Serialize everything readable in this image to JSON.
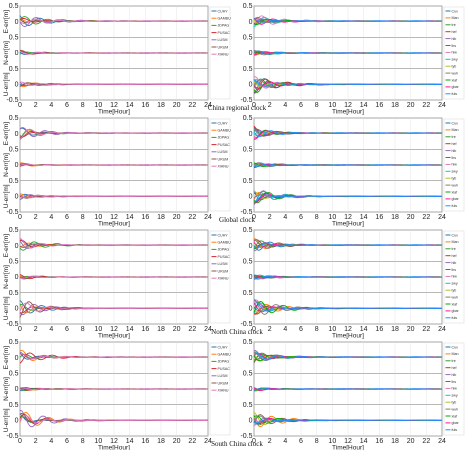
{
  "colors": [
    "#1f77b4",
    "#ff7f0e",
    "#2ca02c",
    "#d62728",
    "#9467bd",
    "#8c564b",
    "#e377c2",
    "#17becf",
    "#bcbd22",
    "#7f7f7f",
    "#00aa00",
    "#ff1493",
    "#1e90ff"
  ],
  "chart_data": [
    {
      "type": "line",
      "row_title": "China regional clock",
      "panels": [
        {
          "side": "left",
          "xlabel": "Time[Hour]",
          "ylabels": [
            "E-err[m]",
            "N-err[m]",
            "U-err[m]"
          ],
          "xlim": [
            0,
            24
          ],
          "ylim": [
            -0.5,
            0.5
          ],
          "xticks": [
            "0",
            "2",
            "4",
            "6",
            "8",
            "10",
            "12",
            "14",
            "16",
            "18",
            "20",
            "22",
            "24"
          ],
          "legend": [
            "CUHY",
            "GAMBU",
            "JDPAG",
            "PUSAC",
            "LUSM",
            "URUM",
            "XIANU"
          ],
          "u_amp": 0.12
        },
        {
          "side": "right",
          "xlabel": "Time[Hour]",
          "ylabels": [
            "",
            "",
            ""
          ],
          "xlim": [
            0,
            24
          ],
          "ylim": [
            -0.5,
            0.5
          ],
          "xticks": [
            "0",
            "2",
            "4",
            "6",
            "8",
            "10",
            "12",
            "14",
            "16",
            "18",
            "20",
            "22",
            "24"
          ],
          "legend": [
            "Cuv",
            "Man",
            "tre",
            "hef",
            "hlb",
            "lhs",
            "hlw",
            "swy",
            "tyb",
            "wuh",
            "xlaf",
            "gbar",
            "fuis"
          ],
          "u_amp": 0.3
        }
      ]
    },
    {
      "type": "line",
      "row_title": "Global clock",
      "panels": [
        {
          "side": "left",
          "xlabel": "Time[Hour]",
          "ylabels": [
            "E-err[m]",
            "N-err[m]",
            "U-err[m]"
          ],
          "xlim": [
            0,
            24
          ],
          "ylim": [
            -0.5,
            0.5
          ],
          "xticks": [
            "0",
            "2",
            "4",
            "6",
            "8",
            "10",
            "12",
            "14",
            "16",
            "18",
            "20",
            "22",
            "24"
          ],
          "legend": [
            "CUHY",
            "GAMBU",
            "JDPAG",
            "PUSAC",
            "LUSM",
            "URUM",
            "XIANU"
          ],
          "u_amp": 0.1
        },
        {
          "side": "right",
          "xlabel": "Time[Hour]",
          "ylabels": [
            "",
            "",
            ""
          ],
          "xlim": [
            0,
            24
          ],
          "ylim": [
            -0.5,
            0.5
          ],
          "xticks": [
            "0",
            "2",
            "4",
            "6",
            "8",
            "10",
            "12",
            "14",
            "16",
            "18",
            "20",
            "22",
            "24"
          ],
          "legend": [
            "Cuv",
            "Man",
            "tre",
            "hef",
            "hlb",
            "lhs",
            "hlw",
            "swy",
            "tyb",
            "wuh",
            "xlaf",
            "gbar",
            "fuis"
          ],
          "u_amp": 0.25
        }
      ]
    },
    {
      "type": "line",
      "row_title": "North China clock",
      "panels": [
        {
          "side": "left",
          "xlabel": "Time[Hour]",
          "ylabels": [
            "E-err[m]",
            "N-err[m]",
            "U-err[m]"
          ],
          "xlim": [
            0,
            24
          ],
          "ylim": [
            -0.5,
            0.5
          ],
          "xticks": [
            "0",
            "2",
            "4",
            "6",
            "8",
            "10",
            "12",
            "14",
            "16",
            "18",
            "20",
            "22",
            "24"
          ],
          "legend": [
            "CUHY",
            "GAMBU",
            "JDPAG",
            "PUSAC",
            "LUSM",
            "URUM",
            "XIANU"
          ],
          "u_amp": 0.3
        },
        {
          "side": "right",
          "xlabel": "Time[Hour]",
          "ylabels": [
            "",
            "",
            ""
          ],
          "xlim": [
            0,
            24
          ],
          "ylim": [
            -0.5,
            0.5
          ],
          "xticks": [
            "0",
            "2",
            "4",
            "6",
            "8",
            "10",
            "12",
            "14",
            "16",
            "18",
            "20",
            "22",
            "24"
          ],
          "legend": [
            "Cuv",
            "Man",
            "tre",
            "hef",
            "hlb",
            "lhs",
            "hlw",
            "swy",
            "tyb",
            "wuh",
            "xlaf",
            "gbar",
            "fuis"
          ],
          "u_amp": 0.3
        }
      ]
    },
    {
      "type": "line",
      "row_title": "South China clock",
      "panels": [
        {
          "side": "left",
          "xlabel": "Time[Hour]",
          "ylabels": [
            "E-err[m]",
            "N-err[m]",
            "U-err[m]"
          ],
          "xlim": [
            0,
            24
          ],
          "ylim": [
            -0.5,
            0.5
          ],
          "xticks": [
            "0",
            "2",
            "4",
            "6",
            "8",
            "10",
            "12",
            "14",
            "16",
            "18",
            "20",
            "22",
            "24"
          ],
          "legend": [
            "CUHY",
            "GAMBU",
            "JDPAG",
            "PUSAC",
            "LUSM",
            "URUM",
            "XIANU"
          ],
          "u_amp": 0.3
        },
        {
          "side": "right",
          "xlabel": "Time[Hour]",
          "ylabels": [
            "",
            "",
            ""
          ],
          "xlim": [
            0,
            24
          ],
          "ylim": [
            -0.5,
            0.5
          ],
          "xticks": [
            "0",
            "2",
            "4",
            "6",
            "8",
            "10",
            "12",
            "14",
            "16",
            "18",
            "20",
            "22",
            "24"
          ],
          "legend": [
            "Cuv",
            "Man",
            "tre",
            "hef",
            "hlb",
            "lhs",
            "hlw",
            "swy",
            "tyb",
            "wuh",
            "xlaf",
            "gbar",
            "fuis"
          ],
          "u_amp": 0.25
        }
      ]
    }
  ]
}
